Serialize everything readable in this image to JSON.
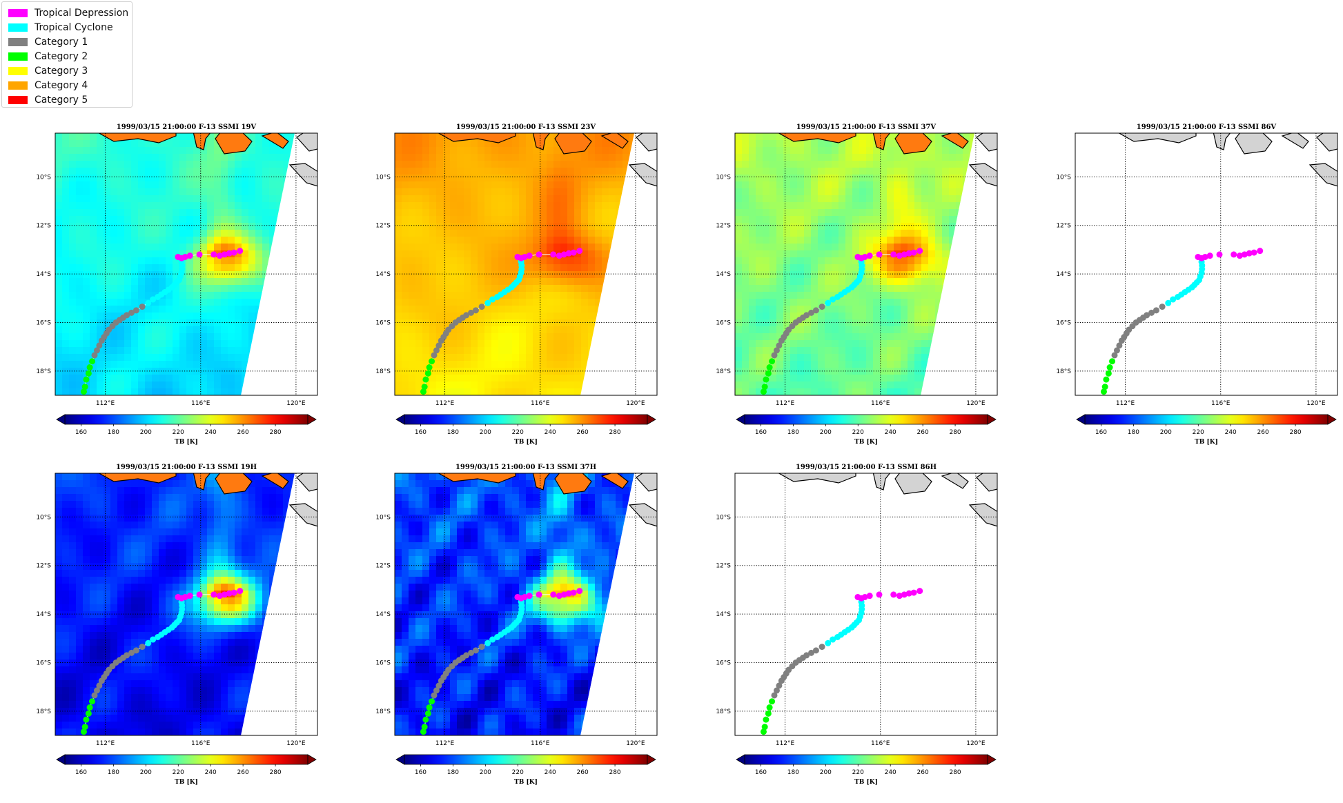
{
  "legend": {
    "items": [
      {
        "label": "Tropical Depression",
        "color": "#ff00ff"
      },
      {
        "label": "Tropical Cyclone",
        "color": "#00ffff"
      },
      {
        "label": "Category 1",
        "color": "#808080"
      },
      {
        "label": "Category 2",
        "color": "#00ff00"
      },
      {
        "label": "Category 3",
        "color": "#ffff00"
      },
      {
        "label": "Category 4",
        "color": "#ffa500"
      },
      {
        "label": "Category 5",
        "color": "#ff0000"
      }
    ]
  },
  "chart_data": {
    "type": "scatter",
    "description_channels": [
      "19V",
      "23V",
      "37V",
      "86V",
      "19H",
      "37H",
      "86H"
    ],
    "panels": [
      {
        "title": "1999/03/15 21:00:00  F-13 SSMI 19V",
        "field": "19V",
        "has_field": true
      },
      {
        "title": "1999/03/15 21:00:00  F-13 SSMI 23V",
        "field": "23V",
        "has_field": true
      },
      {
        "title": "1999/03/15 21:00:00  F-13 SSMI 37V",
        "field": "37V",
        "has_field": true
      },
      {
        "title": "1999/03/15 21:00:00  F-13 SSMI 86V",
        "field": "86V",
        "has_field": false
      },
      {
        "title": "1999/03/15 21:00:00  F-13 SSMI 19H",
        "field": "19H",
        "has_field": true
      },
      {
        "title": "1999/03/15 21:00:00  F-13 SSMI 37H",
        "field": "37H",
        "has_field": true
      },
      {
        "title": "1999/03/15 21:00:00  F-13 SSMI 86H",
        "field": "86H",
        "has_field": false
      }
    ],
    "map": {
      "lon_range": [
        109.9,
        120.9
      ],
      "lat_range": [
        -19.0,
        -8.2
      ],
      "lon_ticks": [
        112,
        116,
        120
      ],
      "lon_tick_labels": [
        "112°E",
        "116°E",
        "120°E"
      ],
      "lat_ticks": [
        -10,
        -12,
        -14,
        -16,
        -18
      ],
      "lat_tick_labels": [
        "10°S",
        "12°S",
        "14°S",
        "16°S",
        "18°S"
      ],
      "grid": "dotted"
    },
    "colorbar": {
      "label": "TB [K]",
      "range": [
        150,
        300
      ],
      "ticks": [
        160,
        180,
        200,
        220,
        240,
        260,
        280
      ],
      "colormap": "jet",
      "extend": "both"
    },
    "track": {
      "series": [
        {
          "category": "Category 2",
          "lon": [
            111.1,
            111.15,
            111.2,
            111.3,
            111.35,
            111.45
          ],
          "lat": [
            -18.85,
            -18.65,
            -18.35,
            -18.1,
            -17.85,
            -17.6
          ]
        },
        {
          "category": "Category 1",
          "lon": [
            111.55,
            111.65,
            111.75,
            111.85,
            111.95,
            112.05,
            112.15,
            112.3,
            112.45,
            112.6,
            112.75,
            112.9,
            113.1,
            113.3,
            113.55
          ],
          "lat": [
            -17.35,
            -17.15,
            -16.95,
            -16.75,
            -16.6,
            -16.45,
            -16.3,
            -16.15,
            -16.0,
            -15.9,
            -15.8,
            -15.7,
            -15.6,
            -15.5,
            -15.35
          ]
        },
        {
          "category": "Tropical Cyclone",
          "lon": [
            113.8,
            114.0,
            114.2,
            114.35,
            114.5,
            114.65,
            114.8,
            114.9,
            115.0,
            115.1,
            115.15,
            115.2,
            115.22,
            115.22,
            115.2
          ],
          "lat": [
            -15.2,
            -15.05,
            -14.95,
            -14.85,
            -14.75,
            -14.65,
            -14.55,
            -14.45,
            -14.35,
            -14.25,
            -14.1,
            -13.95,
            -13.8,
            -13.65,
            -13.5
          ]
        },
        {
          "category": "Tropical Depression",
          "lon": [
            115.05,
            115.2,
            115.35,
            115.55,
            115.95,
            116.55,
            116.8,
            117.0,
            117.2,
            117.4,
            117.65
          ],
          "lat": [
            -13.3,
            -13.35,
            -13.3,
            -13.25,
            -13.2,
            -13.2,
            -13.25,
            -13.2,
            -13.15,
            -13.12,
            -13.05
          ]
        }
      ]
    }
  }
}
